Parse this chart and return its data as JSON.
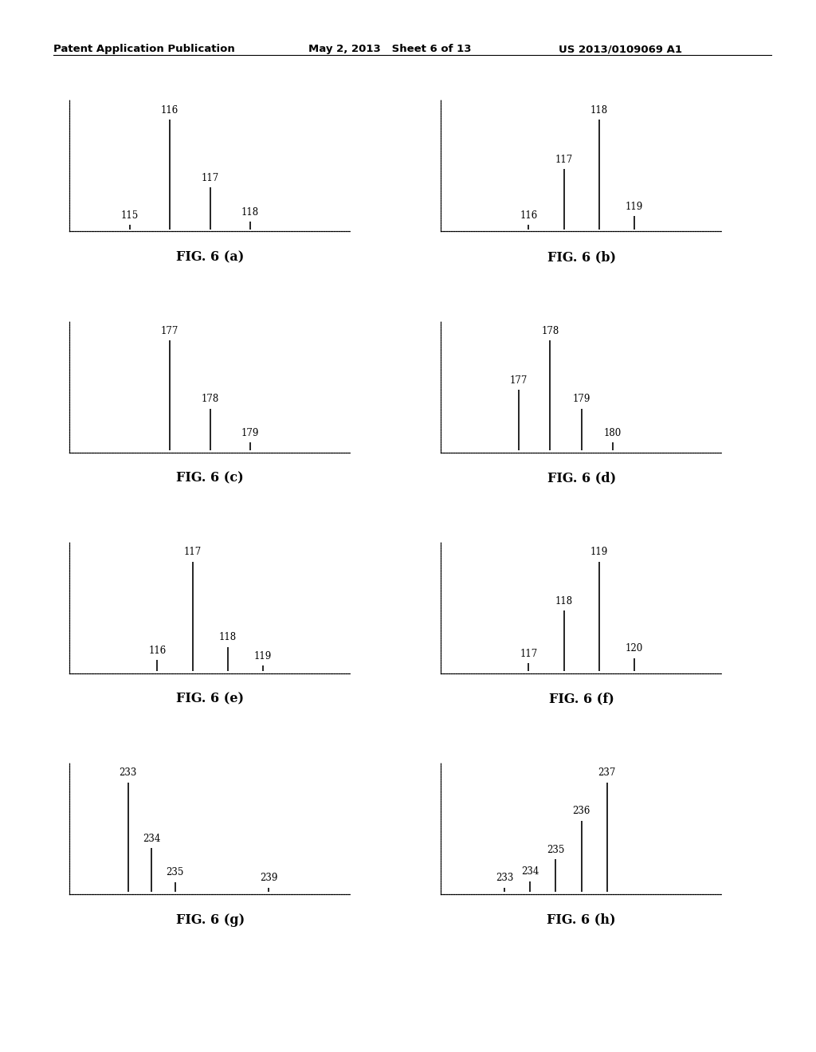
{
  "header_left": "Patent Application Publication",
  "header_mid": "May 2, 2013   Sheet 6 of 13",
  "header_right": "US 2013/0109069 A1",
  "background_color": "#ffffff",
  "panels": [
    {
      "label": "FIG. 6 (a)",
      "peaks": [
        {
          "mz": 115,
          "intensity": 0.04,
          "label": "115"
        },
        {
          "mz": 116,
          "intensity": 1.0,
          "label": "116"
        },
        {
          "mz": 117,
          "intensity": 0.38,
          "label": "117"
        },
        {
          "mz": 118,
          "intensity": 0.07,
          "label": "118"
        }
      ],
      "xmin": 113.5,
      "xmax": 120.5
    },
    {
      "label": "FIG. 6 (b)",
      "peaks": [
        {
          "mz": 116,
          "intensity": 0.04,
          "label": "116"
        },
        {
          "mz": 117,
          "intensity": 0.55,
          "label": "117"
        },
        {
          "mz": 118,
          "intensity": 1.0,
          "label": "118"
        },
        {
          "mz": 119,
          "intensity": 0.12,
          "label": "119"
        }
      ],
      "xmin": 113.5,
      "xmax": 121.5
    },
    {
      "label": "FIG. 6 (c)",
      "peaks": [
        {
          "mz": 177,
          "intensity": 1.0,
          "label": "177"
        },
        {
          "mz": 178,
          "intensity": 0.38,
          "label": "178"
        },
        {
          "mz": 179,
          "intensity": 0.07,
          "label": "179"
        }
      ],
      "xmin": 174.5,
      "xmax": 181.5
    },
    {
      "label": "FIG. 6 (d)",
      "peaks": [
        {
          "mz": 177,
          "intensity": 0.55,
          "label": "177"
        },
        {
          "mz": 178,
          "intensity": 1.0,
          "label": "178"
        },
        {
          "mz": 179,
          "intensity": 0.38,
          "label": "179"
        },
        {
          "mz": 180,
          "intensity": 0.07,
          "label": "180"
        }
      ],
      "xmin": 174.5,
      "xmax": 183.5
    },
    {
      "label": "FIG. 6 (e)",
      "peaks": [
        {
          "mz": 116,
          "intensity": 0.1,
          "label": "116"
        },
        {
          "mz": 117,
          "intensity": 1.0,
          "label": "117"
        },
        {
          "mz": 118,
          "intensity": 0.22,
          "label": "118"
        },
        {
          "mz": 119,
          "intensity": 0.05,
          "label": "119"
        }
      ],
      "xmin": 113.5,
      "xmax": 121.5
    },
    {
      "label": "FIG. 6 (f)",
      "peaks": [
        {
          "mz": 117,
          "intensity": 0.07,
          "label": "117"
        },
        {
          "mz": 118,
          "intensity": 0.55,
          "label": "118"
        },
        {
          "mz": 119,
          "intensity": 1.0,
          "label": "119"
        },
        {
          "mz": 120,
          "intensity": 0.12,
          "label": "120"
        }
      ],
      "xmin": 114.5,
      "xmax": 122.5
    },
    {
      "label": "FIG. 6 (g)",
      "peaks": [
        {
          "mz": 233,
          "intensity": 1.0,
          "label": "233"
        },
        {
          "mz": 234,
          "intensity": 0.4,
          "label": "234"
        },
        {
          "mz": 235,
          "intensity": 0.09,
          "label": "235"
        },
        {
          "mz": 239,
          "intensity": 0.04,
          "label": "239"
        }
      ],
      "xmin": 230.5,
      "xmax": 242.5
    },
    {
      "label": "FIG. 6 (h)",
      "peaks": [
        {
          "mz": 233,
          "intensity": 0.04,
          "label": "233"
        },
        {
          "mz": 234,
          "intensity": 0.1,
          "label": "234"
        },
        {
          "mz": 235,
          "intensity": 0.3,
          "label": "235"
        },
        {
          "mz": 236,
          "intensity": 0.65,
          "label": "236"
        },
        {
          "mz": 237,
          "intensity": 1.0,
          "label": "237"
        }
      ],
      "xmin": 230.5,
      "xmax": 241.5
    }
  ]
}
